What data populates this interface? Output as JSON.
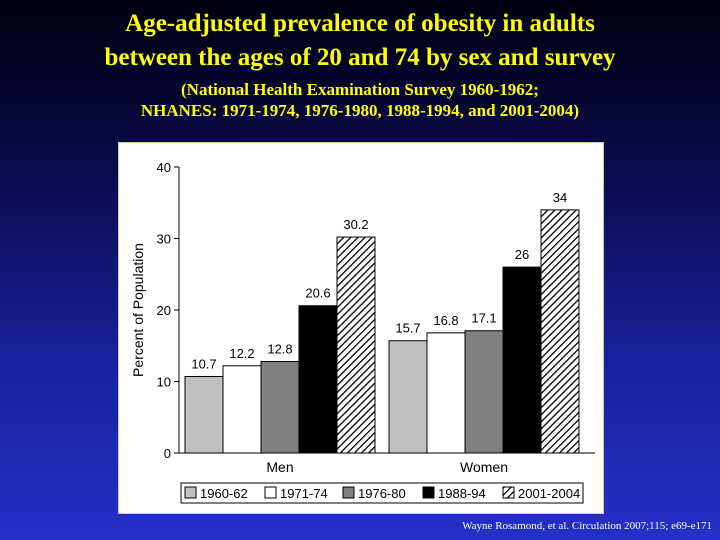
{
  "slide": {
    "title_line1": "Age-adjusted prevalence of obesity in adults",
    "title_line2": "between the ages of 20 and 74 by sex and survey",
    "subtitle_line1": "(National Health Examination Survey 1960-1962;",
    "subtitle_line2": "NHANES: 1971-1974, 1976-1980, 1988-1994, and 2001-2004)",
    "citation": "Wayne Rosamond, et al. Circulation 2007;115; e69-e171"
  },
  "chart_data": {
    "type": "bar",
    "categories": [
      "Men",
      "Women"
    ],
    "series": [
      {
        "name": "1960-62",
        "values": [
          10.7,
          15.7
        ],
        "labels": [
          "10.7",
          "15.7"
        ],
        "fill": "#c0c0c0"
      },
      {
        "name": "1971-74",
        "values": [
          12.2,
          16.8
        ],
        "labels": [
          "12.2",
          "16.8"
        ],
        "fill": "#ffffff"
      },
      {
        "name": "1976-80",
        "values": [
          12.8,
          17.1
        ],
        "labels": [
          "12.8",
          "17.1"
        ],
        "fill": "#808080"
      },
      {
        "name": "1988-94",
        "values": [
          20.6,
          26
        ],
        "labels": [
          "20.6",
          "26"
        ],
        "fill": "#000000"
      },
      {
        "name": "2001-2004",
        "values": [
          30.2,
          34
        ],
        "labels": [
          "30.2",
          "34"
        ],
        "fill": "hatch"
      }
    ],
    "ylabel": "Percent of Population",
    "xlabel": "",
    "ylim": [
      0,
      40
    ],
    "yticks": [
      "0",
      "10",
      "20",
      "30",
      "40"
    ],
    "legend_position": "bottom",
    "grid": false
  }
}
